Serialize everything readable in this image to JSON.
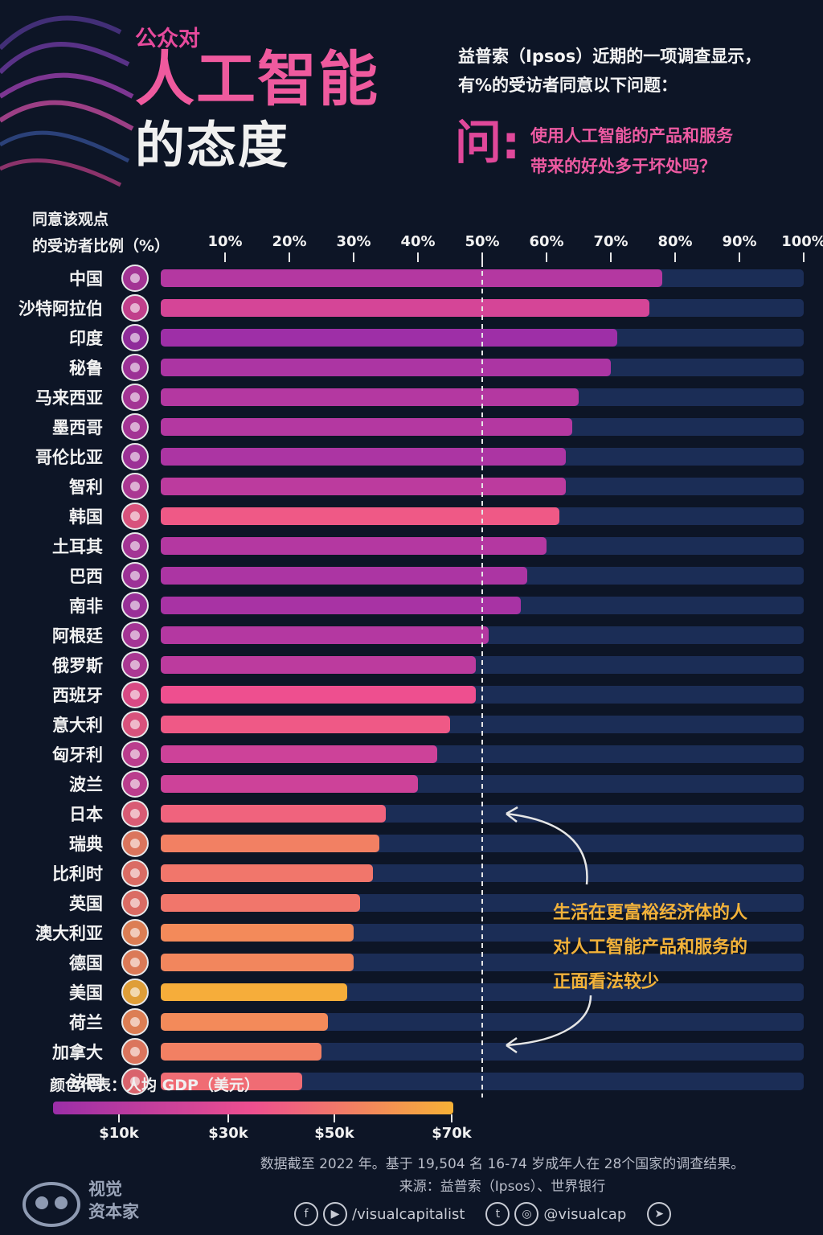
{
  "header": {
    "title_small": "公众对",
    "title_big": "人工智能",
    "title_mid": "的态度",
    "intro_line1": "益普索（Ipsos）近期的一项调查显示，",
    "intro_line2": "有%的受访者同意以下问题：",
    "question_char": "问:",
    "question_line1": "使用人工智能的产品和服务",
    "question_line2": "带来的好处多于坏处吗？"
  },
  "axis_title": {
    "line1": "同意该观点",
    "line2": "的受访者比例（%）"
  },
  "chart_data": {
    "type": "bar",
    "orientation": "horizontal",
    "x_ticks": [
      "10%",
      "20%",
      "30%",
      "40%",
      "50%",
      "60%",
      "70%",
      "80%",
      "90%",
      "100%"
    ],
    "xlim": [
      0,
      100
    ],
    "reference_line": 50,
    "categories": [
      "中国",
      "沙特阿拉伯",
      "印度",
      "秘鲁",
      "马来西亚",
      "墨西哥",
      "哥伦比亚",
      "智利",
      "韩国",
      "土耳其",
      "巴西",
      "南非",
      "阿根廷",
      "俄罗斯",
      "西班牙",
      "意大利",
      "匈牙利",
      "波兰",
      "日本",
      "瑞典",
      "比利时",
      "英国",
      "澳大利亚",
      "德国",
      "美国",
      "荷兰",
      "加拿大",
      "法国"
    ],
    "values": [
      78,
      76,
      71,
      70,
      65,
      64,
      63,
      63,
      62,
      60,
      57,
      56,
      51,
      49,
      49,
      45,
      43,
      40,
      35,
      34,
      33,
      31,
      30,
      30,
      29,
      26,
      25,
      22
    ],
    "gdp_color_level": [
      0.15,
      0.35,
      0.02,
      0.1,
      0.15,
      0.15,
      0.1,
      0.2,
      0.55,
      0.15,
      0.1,
      0.08,
      0.15,
      0.2,
      0.5,
      0.55,
      0.3,
      0.3,
      0.6,
      0.75,
      0.7,
      0.7,
      0.8,
      0.78,
      0.98,
      0.8,
      0.75,
      0.65
    ],
    "legend_ticks": [
      "$10k",
      "$30k",
      "$50k",
      "$70k"
    ],
    "colors": {
      "track": "#1b2d56",
      "low": "#9b2ea8",
      "mid": "#ee4f8f",
      "high": "#f6b136",
      "reference": "#e6e6e6"
    }
  },
  "legend_title": "颜色代表：人均 GDP（美元）",
  "annotation": {
    "line1": "生活在更富裕经济体的人",
    "line2": "对人工智能产品和服务的",
    "line3": "正面看法较少"
  },
  "notes": {
    "line1": "数据截至 2022 年。基于 19,504 名 16-74 岁成年人在 28个国家的调查结果。",
    "line2": "来源：益普索（Ipsos）、世界银行"
  },
  "brand": {
    "line1": "视觉",
    "line2": "资本家"
  },
  "social": {
    "handle1": "/visualcapitalist",
    "handle2": "@visualcap"
  },
  "icons": [
    "facebook-icon",
    "play-icon",
    "twitter-icon",
    "instagram-icon",
    "cursor-icon",
    "flag-icon"
  ]
}
